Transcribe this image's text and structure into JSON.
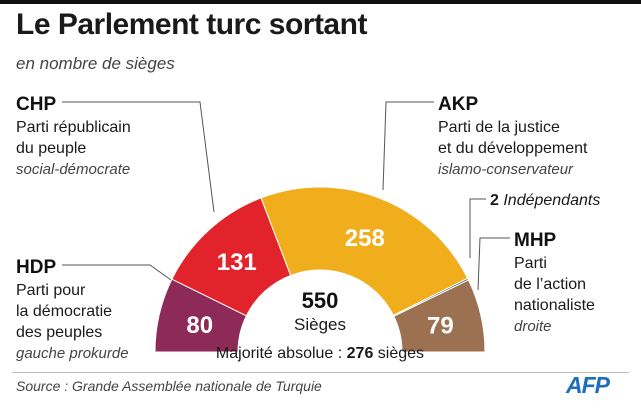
{
  "title": "Le Parlement turc sortant",
  "subtitle": "en nombre de sièges",
  "source": "Source :  Grande Assemblée nationale de Turquie",
  "logo": "AFP",
  "chart_data": {
    "type": "pie",
    "variant": "semicircle parliament",
    "total": 550,
    "total_label": "Sièges",
    "majority_label": "Majorité absolue :",
    "majority_value": 276,
    "majority_unit": "sièges",
    "series": [
      {
        "abbr": "HDP",
        "name": "Parti pour la démocratie des peuples",
        "name_lines": [
          "Parti pour",
          "la démocratie",
          "des peuples"
        ],
        "desc": "gauche prokurde",
        "value": 80,
        "color": "#8e2a57",
        "show_value": true
      },
      {
        "abbr": "CHP",
        "name": "Parti républicain du peuple",
        "name_lines": [
          "Parti républicain",
          "du peuple"
        ],
        "desc": "social-démocrate",
        "value": 131,
        "color": "#e2232c",
        "show_value": true
      },
      {
        "abbr": "AKP",
        "name": "Parti de la justice et du développement",
        "name_lines": [
          "Parti de la justice",
          "et du développement"
        ],
        "desc": "islamo-conservateur",
        "value": 258,
        "color": "#f0ad1c",
        "show_value": true
      },
      {
        "abbr": "",
        "name": "Indépendants",
        "name_lines": [
          "Indépendants"
        ],
        "desc": "",
        "value": 2,
        "color": "#3d6e6a",
        "show_value": false
      },
      {
        "abbr": "MHP",
        "name": "Parti de l'action nationaliste",
        "name_lines": [
          "Parti",
          "de l’action",
          "nationaliste"
        ],
        "desc": "droite",
        "value": 79,
        "color": "#9b7152",
        "show_value": true
      }
    ]
  }
}
